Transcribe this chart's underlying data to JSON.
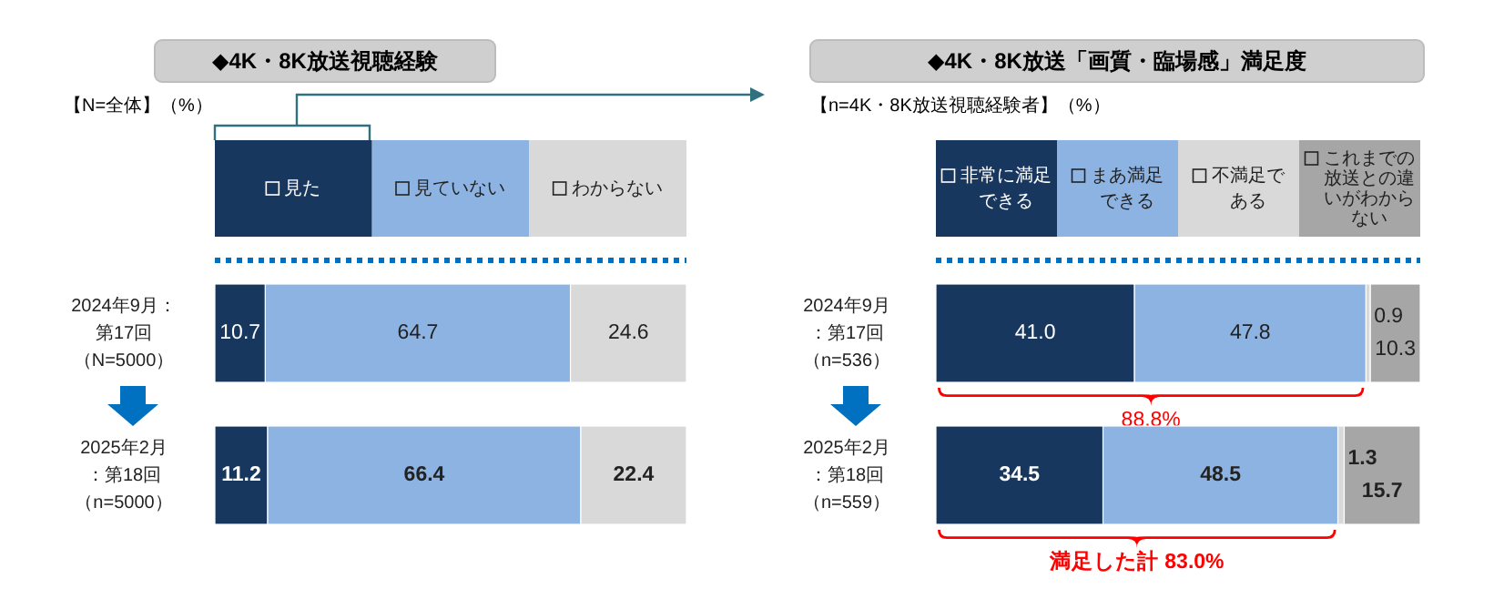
{
  "chart_data": [
    {
      "type": "bar",
      "orientation": "horizontal",
      "stacked": true,
      "legend": "top",
      "title": "◆4K・8K放送視聴経験",
      "annotations": [
        "【N=全体】（%）"
      ],
      "categories": [
        "2024年9月：第17回（N=5000）",
        "2025年2月：第18回（n=5000）"
      ],
      "series": [
        {
          "name": "見た",
          "color": "#17375e",
          "values": [
            10.7,
            11.2
          ],
          "value_labels": [
            "10.7",
            "11.2"
          ]
        },
        {
          "name": "見ていない",
          "color": "#8db3e2",
          "values": [
            64.7,
            66.4
          ],
          "value_labels": [
            "64.7",
            "66.4"
          ]
        },
        {
          "name": "わからない",
          "color": "#d9d9d9",
          "values": [
            24.6,
            22.4
          ],
          "value_labels": [
            "24.6",
            "22.4"
          ]
        }
      ]
    },
    {
      "type": "bar",
      "orientation": "horizontal",
      "stacked": true,
      "legend": "top",
      "title": "◆4K・8K放送「画質・臨場感」満足度",
      "annotations": [
        "【n=4K・8K放送視聴経験者】（%）",
        "88.8%",
        "満足した計 83.0%"
      ],
      "categories": [
        "2024年9月：第17回（n=536）",
        "2025年2月：第18回（n=559）"
      ],
      "series": [
        {
          "name": "非常に満足できる",
          "color": "#17375e",
          "values": [
            41.0,
            34.5
          ],
          "value_labels": [
            "41.0",
            "34.5"
          ]
        },
        {
          "name": "まあ満足できる",
          "color": "#8db3e2",
          "values": [
            47.8,
            48.5
          ],
          "value_labels": [
            "47.8",
            "48.5"
          ]
        },
        {
          "name": "不満足である",
          "color": "#d9d9d9",
          "values": [
            0.9,
            1.3
          ],
          "value_labels": [
            "0.9",
            "1.3"
          ]
        },
        {
          "name": "これまでの放送との違いがわからない",
          "color": "#a6a6a6",
          "values": [
            10.3,
            15.7
          ],
          "value_labels": [
            "10.3",
            "15.7"
          ]
        }
      ]
    }
  ]
}
